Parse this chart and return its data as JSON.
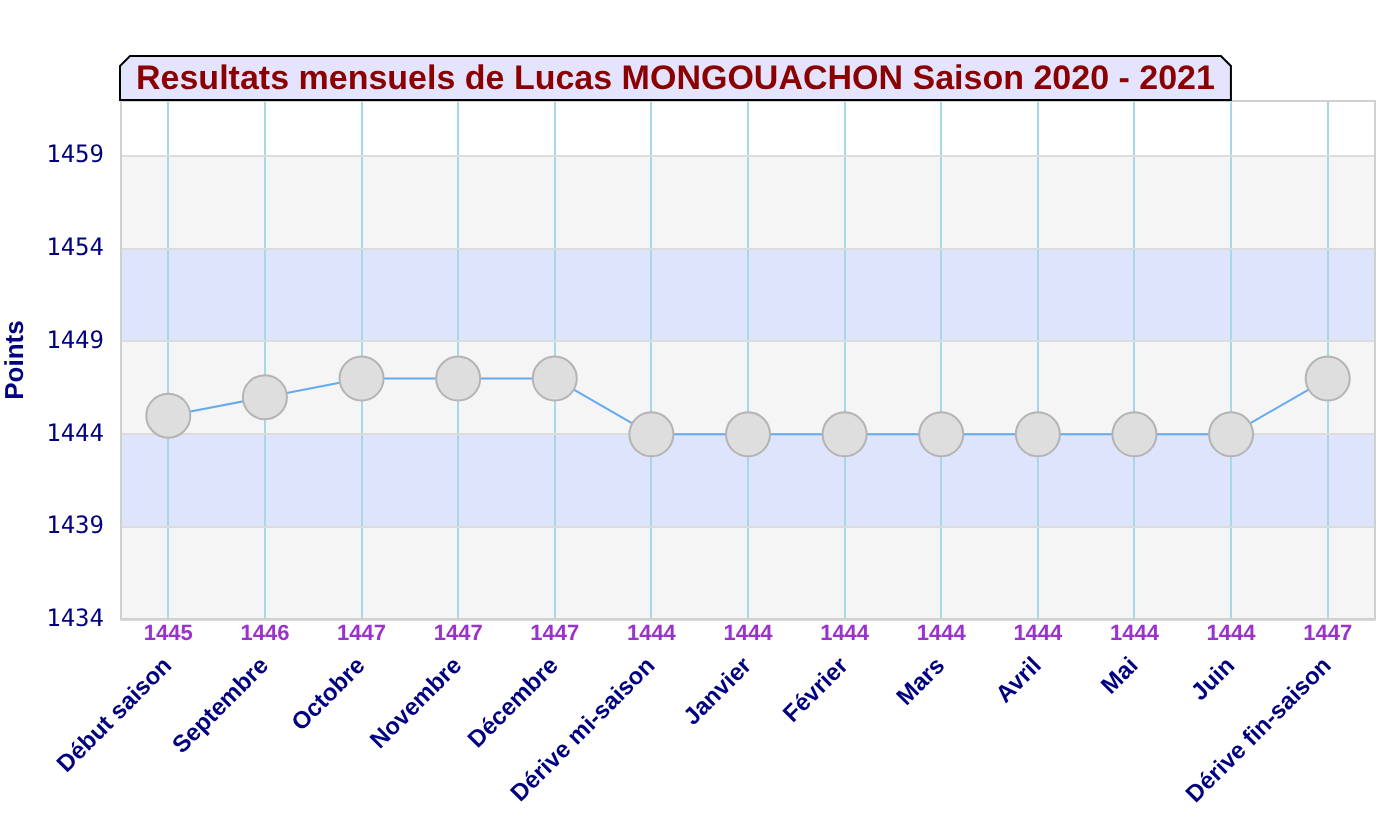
{
  "chart_data": {
    "type": "line",
    "title": "Resultats mensuels de Lucas MONGOUACHON Saison 2020 - 2021",
    "ylabel": "Points",
    "categories": [
      "Début saison",
      "Septembre",
      "Octobre",
      "Novembre",
      "Décembre",
      "Dérive mi-saison",
      "Janvier",
      "Février",
      "Mars",
      "Avril",
      "Mai",
      "Juin",
      "Dérive fin-saison"
    ],
    "series": [
      {
        "color": "#66aaee",
        "values": [
          1445,
          1446,
          1447,
          1447,
          1447,
          1444,
          1444,
          1444,
          1444,
          1444,
          1444,
          1444,
          1447
        ]
      }
    ],
    "ylim": [
      1434,
      1462
    ],
    "yticks": [
      1434,
      1439,
      1444,
      1449,
      1454,
      1459
    ],
    "grid": true,
    "marker": "circle",
    "data_labels": true,
    "bands": [
      {
        "axis": "y",
        "from": 1434,
        "to": 1439,
        "color": "#f5f5f5"
      },
      {
        "axis": "y",
        "from": 1439,
        "to": 1444,
        "color": "#dde4fc"
      },
      {
        "axis": "y",
        "from": 1444,
        "to": 1449,
        "color": "#f5f5f5"
      },
      {
        "axis": "y",
        "from": 1449,
        "to": 1454,
        "color": "#dde4fc"
      },
      {
        "axis": "y",
        "from": 1454,
        "to": 1459,
        "color": "#f5f5f5"
      }
    ]
  }
}
